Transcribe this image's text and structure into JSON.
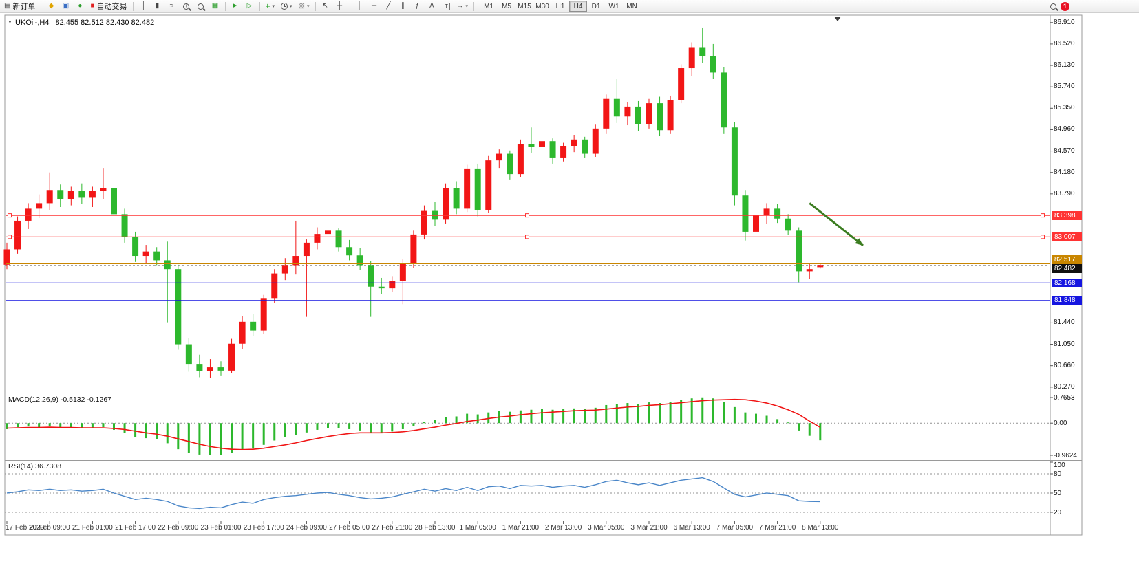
{
  "toolbar": {
    "new_order": "新订单",
    "auto_trading": "自动交易",
    "timeframes": [
      "M1",
      "M5",
      "M15",
      "M30",
      "H1",
      "H4",
      "D1",
      "W1",
      "MN"
    ],
    "active_timeframe": "H4",
    "notification_badge": "1"
  },
  "icons": {
    "new_order": "▤",
    "metaeditor": "◆",
    "profile": "▣",
    "refresh": "●",
    "auto_trading": "■",
    "bar_chart": "║",
    "candles": "▮",
    "line_chart": "≈",
    "zoom_in": "+",
    "zoom_out": "−",
    "tile": "▦",
    "auto_scroll": "►",
    "chart_shift": "▷",
    "new_chart": "+",
    "template": "▧",
    "caret": "▾",
    "cursor": "↖",
    "crosshair": "┼",
    "vline": "│",
    "hline": "─",
    "trendline": "╱",
    "channel": "∥",
    "fibonacci": "ƒ",
    "text": "A",
    "text_label": "T",
    "arrows": "→",
    "title_caret": "▼"
  },
  "chart": {
    "symbol_title": "UKOil-,H4",
    "ohlc": "82.455 82.512 82.430 82.482"
  },
  "chart_data": {
    "type": "candlestick",
    "symbol": "UKOil-",
    "timeframe": "H4",
    "colors": {
      "bull": "#f21616",
      "bear": "#2db82d",
      "macd_hist": "#2db82d",
      "macd_signal": "#f01414",
      "rsi": "#4a86c8",
      "grid": "#9a9a9a"
    },
    "price_axis": [
      "86.910",
      "86.520",
      "86.130",
      "85.740",
      "85.350",
      "84.960",
      "84.570",
      "84.180",
      "83.790",
      "81.440",
      "81.050",
      "80.660",
      "80.270"
    ],
    "price_badges": [
      {
        "label": "83.398",
        "value": 83.398,
        "type": "red"
      },
      {
        "label": "83.007",
        "value": 83.007,
        "type": "red"
      },
      {
        "label": "82.517",
        "value": 82.517,
        "type": "orange"
      },
      {
        "label": "82.482",
        "value": 82.482,
        "type": "black"
      },
      {
        "label": "82.168",
        "value": 82.168,
        "type": "blue"
      },
      {
        "label": "81.848",
        "value": 81.848,
        "type": "blue"
      }
    ],
    "hlines": [
      {
        "value": 83.398,
        "color": "#ff3333",
        "selected": true
      },
      {
        "value": 83.007,
        "color": "#ff3333",
        "selected": true
      },
      {
        "value": 82.517,
        "color": "#c98600",
        "selected": false
      },
      {
        "value": 82.168,
        "color": "#1515e0",
        "selected": false
      },
      {
        "value": 81.848,
        "color": "#1515e0",
        "selected": false
      }
    ],
    "current_price": {
      "value": 82.482
    },
    "arrow": {
      "from_bar": 75,
      "from_price": 83.62,
      "to_bar": 80,
      "to_price": 82.85,
      "color": "#3c7d21"
    },
    "candles": [
      [
        82.5,
        82.9,
        82.42,
        82.78
      ],
      [
        82.78,
        83.38,
        82.7,
        83.3
      ],
      [
        83.3,
        83.62,
        83.15,
        83.52
      ],
      [
        83.52,
        83.78,
        83.35,
        83.62
      ],
      [
        83.62,
        84.18,
        83.5,
        83.86
      ],
      [
        83.86,
        83.96,
        83.55,
        83.7
      ],
      [
        83.7,
        83.92,
        83.58,
        83.85
      ],
      [
        83.85,
        83.98,
        83.6,
        83.72
      ],
      [
        83.72,
        83.92,
        83.55,
        83.84
      ],
      [
        83.84,
        84.25,
        83.7,
        83.9
      ],
      [
        83.9,
        83.96,
        83.3,
        83.42
      ],
      [
        83.42,
        83.52,
        82.9,
        83.0
      ],
      [
        83.0,
        83.1,
        82.55,
        82.66
      ],
      [
        82.66,
        82.86,
        82.52,
        82.74
      ],
      [
        82.74,
        82.82,
        82.48,
        82.58
      ],
      [
        82.58,
        82.92,
        81.45,
        82.42
      ],
      [
        82.42,
        82.5,
        80.95,
        81.05
      ],
      [
        81.05,
        81.16,
        80.55,
        80.68
      ],
      [
        80.68,
        80.86,
        80.45,
        80.56
      ],
      [
        80.56,
        80.78,
        80.44,
        80.63
      ],
      [
        80.63,
        80.74,
        80.47,
        80.57
      ],
      [
        80.57,
        81.15,
        80.52,
        81.06
      ],
      [
        81.06,
        81.56,
        80.96,
        81.46
      ],
      [
        81.46,
        81.6,
        81.2,
        81.3
      ],
      [
        81.3,
        81.95,
        81.24,
        81.88
      ],
      [
        81.88,
        82.42,
        81.8,
        82.34
      ],
      [
        82.34,
        82.62,
        82.22,
        82.48
      ],
      [
        82.48,
        83.3,
        82.32,
        82.66
      ],
      [
        82.66,
        82.96,
        81.55,
        82.9
      ],
      [
        82.9,
        83.18,
        82.78,
        83.06
      ],
      [
        83.06,
        83.36,
        82.95,
        83.12
      ],
      [
        83.12,
        83.16,
        82.74,
        82.82
      ],
      [
        82.82,
        82.95,
        82.58,
        82.67
      ],
      [
        82.67,
        82.8,
        82.4,
        82.48
      ],
      [
        82.48,
        82.56,
        81.55,
        82.1
      ],
      [
        82.1,
        82.26,
        81.97,
        82.07
      ],
      [
        82.07,
        82.28,
        82.0,
        82.2
      ],
      [
        82.2,
        82.6,
        81.78,
        82.52
      ],
      [
        82.52,
        83.12,
        82.44,
        83.05
      ],
      [
        83.05,
        83.58,
        82.96,
        83.48
      ],
      [
        83.48,
        83.64,
        83.2,
        83.32
      ],
      [
        83.32,
        83.98,
        83.25,
        83.9
      ],
      [
        83.9,
        84.02,
        83.42,
        83.52
      ],
      [
        83.52,
        84.32,
        83.46,
        84.24
      ],
      [
        84.24,
        84.34,
        83.38,
        83.5
      ],
      [
        83.5,
        84.48,
        83.44,
        84.4
      ],
      [
        84.4,
        84.6,
        84.25,
        84.52
      ],
      [
        84.52,
        84.58,
        84.04,
        84.15
      ],
      [
        84.15,
        84.78,
        84.1,
        84.7
      ],
      [
        84.7,
        85.0,
        84.54,
        84.64
      ],
      [
        84.64,
        84.82,
        84.5,
        84.75
      ],
      [
        84.75,
        84.8,
        84.34,
        84.44
      ],
      [
        84.44,
        84.72,
        84.38,
        84.66
      ],
      [
        84.66,
        84.86,
        84.55,
        84.78
      ],
      [
        84.78,
        84.83,
        84.44,
        84.52
      ],
      [
        84.52,
        85.05,
        84.46,
        84.98
      ],
      [
        84.98,
        85.6,
        84.88,
        85.52
      ],
      [
        85.52,
        85.88,
        85.08,
        85.2
      ],
      [
        85.2,
        85.46,
        85.04,
        85.38
      ],
      [
        85.38,
        85.48,
        84.94,
        85.06
      ],
      [
        85.06,
        85.52,
        84.98,
        85.44
      ],
      [
        85.44,
        85.56,
        84.84,
        84.95
      ],
      [
        84.95,
        85.58,
        84.88,
        85.5
      ],
      [
        85.5,
        86.15,
        85.44,
        86.08
      ],
      [
        86.08,
        86.55,
        85.94,
        86.45
      ],
      [
        86.45,
        86.82,
        86.18,
        86.3
      ],
      [
        86.3,
        86.52,
        85.88,
        86.0
      ],
      [
        86.0,
        86.1,
        84.88,
        85.0
      ],
      [
        85.0,
        85.1,
        83.58,
        83.76
      ],
      [
        83.76,
        83.86,
        82.94,
        83.1
      ],
      [
        83.1,
        83.48,
        83.0,
        83.4
      ],
      [
        83.4,
        83.62,
        83.24,
        83.52
      ],
      [
        83.52,
        83.6,
        83.26,
        83.34
      ],
      [
        83.34,
        83.42,
        83.04,
        83.12
      ],
      [
        83.12,
        83.18,
        82.18,
        82.38
      ],
      [
        82.38,
        82.52,
        82.24,
        82.42
      ],
      [
        82.455,
        82.512,
        82.43,
        82.482
      ]
    ],
    "time_labels": [
      "17 Feb 2023",
      "20 Feb 09:00",
      "21 Feb 01:00",
      "21 Feb 17:00",
      "22 Feb 09:00",
      "23 Feb 01:00",
      "23 Feb 17:00",
      "24 Feb 09:00",
      "27 Feb 05:00",
      "27 Feb 21:00",
      "28 Feb 13:00",
      "1 Mar 05:00",
      "1 Mar 21:00",
      "2 Mar 13:00",
      "3 Mar 05:00",
      "3 Mar 21:00",
      "6 Mar 13:00",
      "7 Mar 05:00",
      "7 Mar 21:00",
      "8 Mar 13:00"
    ],
    "macd": {
      "name": "MACD(12,26,9)",
      "values_text": "-0.5132 -0.1267",
      "scale": [
        "0.7653",
        "0.00",
        "-0.9624"
      ],
      "histogram": [
        -0.18,
        -0.12,
        -0.1,
        -0.12,
        -0.1,
        -0.14,
        -0.13,
        -0.16,
        -0.14,
        -0.12,
        -0.2,
        -0.3,
        -0.42,
        -0.45,
        -0.48,
        -0.6,
        -0.78,
        -0.88,
        -0.94,
        -0.96,
        -0.95,
        -0.88,
        -0.8,
        -0.76,
        -0.65,
        -0.52,
        -0.42,
        -0.35,
        -0.28,
        -0.2,
        -0.15,
        -0.15,
        -0.18,
        -0.22,
        -0.28,
        -0.28,
        -0.25,
        -0.18,
        -0.08,
        0.04,
        0.1,
        0.18,
        0.2,
        0.28,
        0.26,
        0.32,
        0.36,
        0.34,
        0.38,
        0.4,
        0.42,
        0.4,
        0.42,
        0.44,
        0.42,
        0.46,
        0.54,
        0.58,
        0.6,
        0.58,
        0.62,
        0.6,
        0.64,
        0.7,
        0.74,
        0.77,
        0.74,
        0.64,
        0.48,
        0.32,
        0.28,
        0.22,
        0.12,
        0.02,
        -0.22,
        -0.38,
        -0.5132
      ],
      "signal": [
        -0.15,
        -0.14,
        -0.13,
        -0.13,
        -0.12,
        -0.13,
        -0.13,
        -0.14,
        -0.14,
        -0.14,
        -0.16,
        -0.19,
        -0.24,
        -0.29,
        -0.33,
        -0.39,
        -0.47,
        -0.55,
        -0.63,
        -0.7,
        -0.75,
        -0.78,
        -0.79,
        -0.78,
        -0.75,
        -0.7,
        -0.65,
        -0.59,
        -0.52,
        -0.46,
        -0.4,
        -0.35,
        -0.31,
        -0.29,
        -0.29,
        -0.29,
        -0.28,
        -0.26,
        -0.22,
        -0.17,
        -0.12,
        -0.06,
        -0.01,
        0.05,
        0.09,
        0.14,
        0.18,
        0.21,
        0.25,
        0.28,
        0.31,
        0.33,
        0.35,
        0.37,
        0.38,
        0.39,
        0.42,
        0.45,
        0.48,
        0.5,
        0.53,
        0.55,
        0.58,
        0.61,
        0.64,
        0.67,
        0.69,
        0.7,
        0.71,
        0.7,
        0.66,
        0.6,
        0.51,
        0.4,
        0.26,
        0.06,
        -0.1267
      ]
    },
    "rsi": {
      "name": "RSI(14)",
      "value_text": "36.7308",
      "scale": [
        "100",
        "80",
        "50",
        "20"
      ],
      "levels": [
        80,
        50,
        20
      ],
      "values": [
        50,
        52,
        55,
        54,
        56,
        54,
        55,
        53,
        54,
        56,
        50,
        45,
        40,
        42,
        40,
        37,
        30,
        27,
        26,
        28,
        27,
        32,
        36,
        34,
        40,
        43,
        45,
        46,
        48,
        50,
        51,
        48,
        46,
        43,
        41,
        42,
        44,
        48,
        52,
        56,
        53,
        57,
        54,
        59,
        54,
        60,
        61,
        57,
        62,
        61,
        62,
        59,
        61,
        62,
        59,
        63,
        68,
        70,
        66,
        63,
        66,
        62,
        66,
        70,
        72,
        74,
        68,
        58,
        48,
        44,
        47,
        50,
        48,
        46,
        38,
        37,
        36.73
      ]
    }
  }
}
